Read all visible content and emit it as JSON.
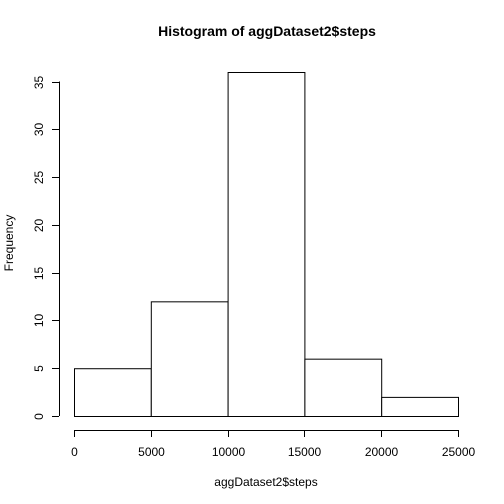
{
  "chart_data": {
    "type": "bar",
    "title": "Histogram of aggDataset2$steps",
    "xlabel": "aggDataset2$steps",
    "ylabel": "Frequency",
    "bins": [
      {
        "from": 0,
        "to": 5000,
        "count": 5
      },
      {
        "from": 5000,
        "to": 10000,
        "count": 12
      },
      {
        "from": 10000,
        "to": 15000,
        "count": 36
      },
      {
        "from": 15000,
        "to": 20000,
        "count": 6
      },
      {
        "from": 20000,
        "to": 25000,
        "count": 2
      }
    ],
    "xlim": [
      0,
      25000
    ],
    "ylim": [
      0,
      36
    ],
    "x_ticks": [
      0,
      5000,
      10000,
      15000,
      20000,
      25000
    ],
    "y_ticks": [
      0,
      5,
      10,
      15,
      20,
      25,
      30,
      35
    ],
    "grid": false,
    "colors": {
      "bar_fill": "#ffffff",
      "bar_stroke": "#000000",
      "background": "#ffffff"
    }
  }
}
